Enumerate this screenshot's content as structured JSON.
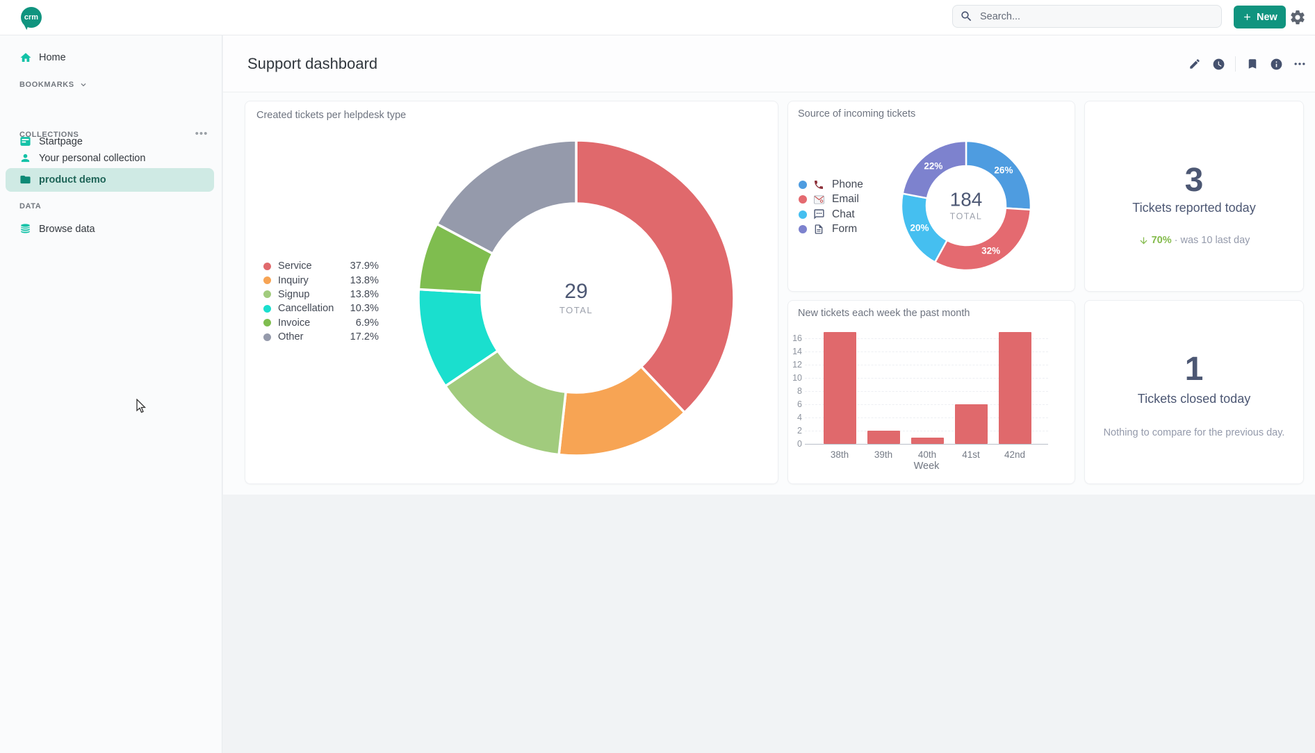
{
  "topbar": {
    "logo_text": "crm",
    "search_placeholder": "Search...",
    "new_label": "New"
  },
  "colors": {
    "brand": "#10947F",
    "brand_bright": "#13C2A7",
    "selected_row_bg": "#cfeae4",
    "positive": "#84BB4C",
    "text_dark": "#4C5773",
    "text_muted": "#949AAB"
  },
  "sidebar": {
    "home_label": "Home",
    "sections": [
      {
        "title": "BOOKMARKS",
        "items": [
          {
            "label": "Startpage",
            "icon": "startpage-icon"
          }
        ]
      },
      {
        "title": "COLLECTIONS",
        "items": [
          {
            "label": "Your personal collection",
            "icon": "person-icon"
          },
          {
            "label": "product demo",
            "icon": "folder-icon",
            "selected": true
          }
        ]
      },
      {
        "title": "DATA",
        "items": [
          {
            "label": "Browse data",
            "icon": "database-icon"
          }
        ]
      }
    ]
  },
  "header": {
    "title": "Support dashboard"
  },
  "cards": {
    "helpdesk": {
      "title": "Created tickets per helpdesk type",
      "total": "29",
      "total_label": "TOTAL",
      "chart_data": {
        "type": "pie",
        "title": "Created tickets per helpdesk type",
        "total": 29,
        "segments": [
          {
            "label": "Service",
            "pct": 37.9,
            "pct_label": "37.9%",
            "color": "#E0696C"
          },
          {
            "label": "Inquiry",
            "pct": 13.8,
            "pct_label": "13.8%",
            "color": "#F7A454"
          },
          {
            "label": "Signup",
            "pct": 13.8,
            "pct_label": "13.8%",
            "color": "#A1CB7D"
          },
          {
            "label": "Cancellation",
            "pct": 10.3,
            "pct_label": "10.3%",
            "color": "#1ADFCE"
          },
          {
            "label": "Invoice",
            "pct": 6.9,
            "pct_label": "6.9%",
            "color": "#7FBD4F"
          },
          {
            "label": "Other",
            "pct": 17.2,
            "pct_label": "17.2%",
            "color": "#959AAB"
          }
        ]
      }
    },
    "source": {
      "title": "Source of incoming tickets",
      "total": "184",
      "total_label": "TOTAL",
      "chart_data": {
        "type": "pie",
        "title": "Source of incoming tickets",
        "total": 184,
        "segments": [
          {
            "label": "Phone",
            "pct": 26,
            "pct_label": "26%",
            "color": "#4E9CE0",
            "icon": "phone-icon"
          },
          {
            "label": "Email",
            "pct": 32,
            "pct_label": "32%",
            "color": "#E46A70",
            "icon": "email-icon"
          },
          {
            "label": "Chat",
            "pct": 20,
            "pct_label": "20%",
            "color": "#45BFF0",
            "icon": "chat-icon"
          },
          {
            "label": "Form",
            "pct": 22,
            "pct_label": "22%",
            "color": "#7D82CE",
            "icon": "form-icon"
          }
        ]
      }
    },
    "reported": {
      "value": "3",
      "label": "Tickets reported today",
      "delta_pct": "70%",
      "delta_note": "· was 10 last day",
      "delta_direction": "down"
    },
    "weekly": {
      "title": "New tickets each week the past month",
      "chart_data": {
        "type": "bar",
        "title": "New tickets each week the past month",
        "categories": [
          "38th",
          "39th",
          "40th",
          "41st",
          "42nd"
        ],
        "values": [
          17,
          2,
          1,
          6,
          17
        ],
        "xlabel": "Week",
        "ylabel": "",
        "yticks": [
          0,
          2,
          4,
          6,
          8,
          10,
          12,
          14,
          16
        ],
        "ylim": [
          0,
          17
        ],
        "bar_color": "#E0696C",
        "grid": "dashed-horizontal"
      }
    },
    "closed": {
      "value": "1",
      "label": "Tickets closed today",
      "note": "Nothing to compare for the previous day."
    }
  }
}
